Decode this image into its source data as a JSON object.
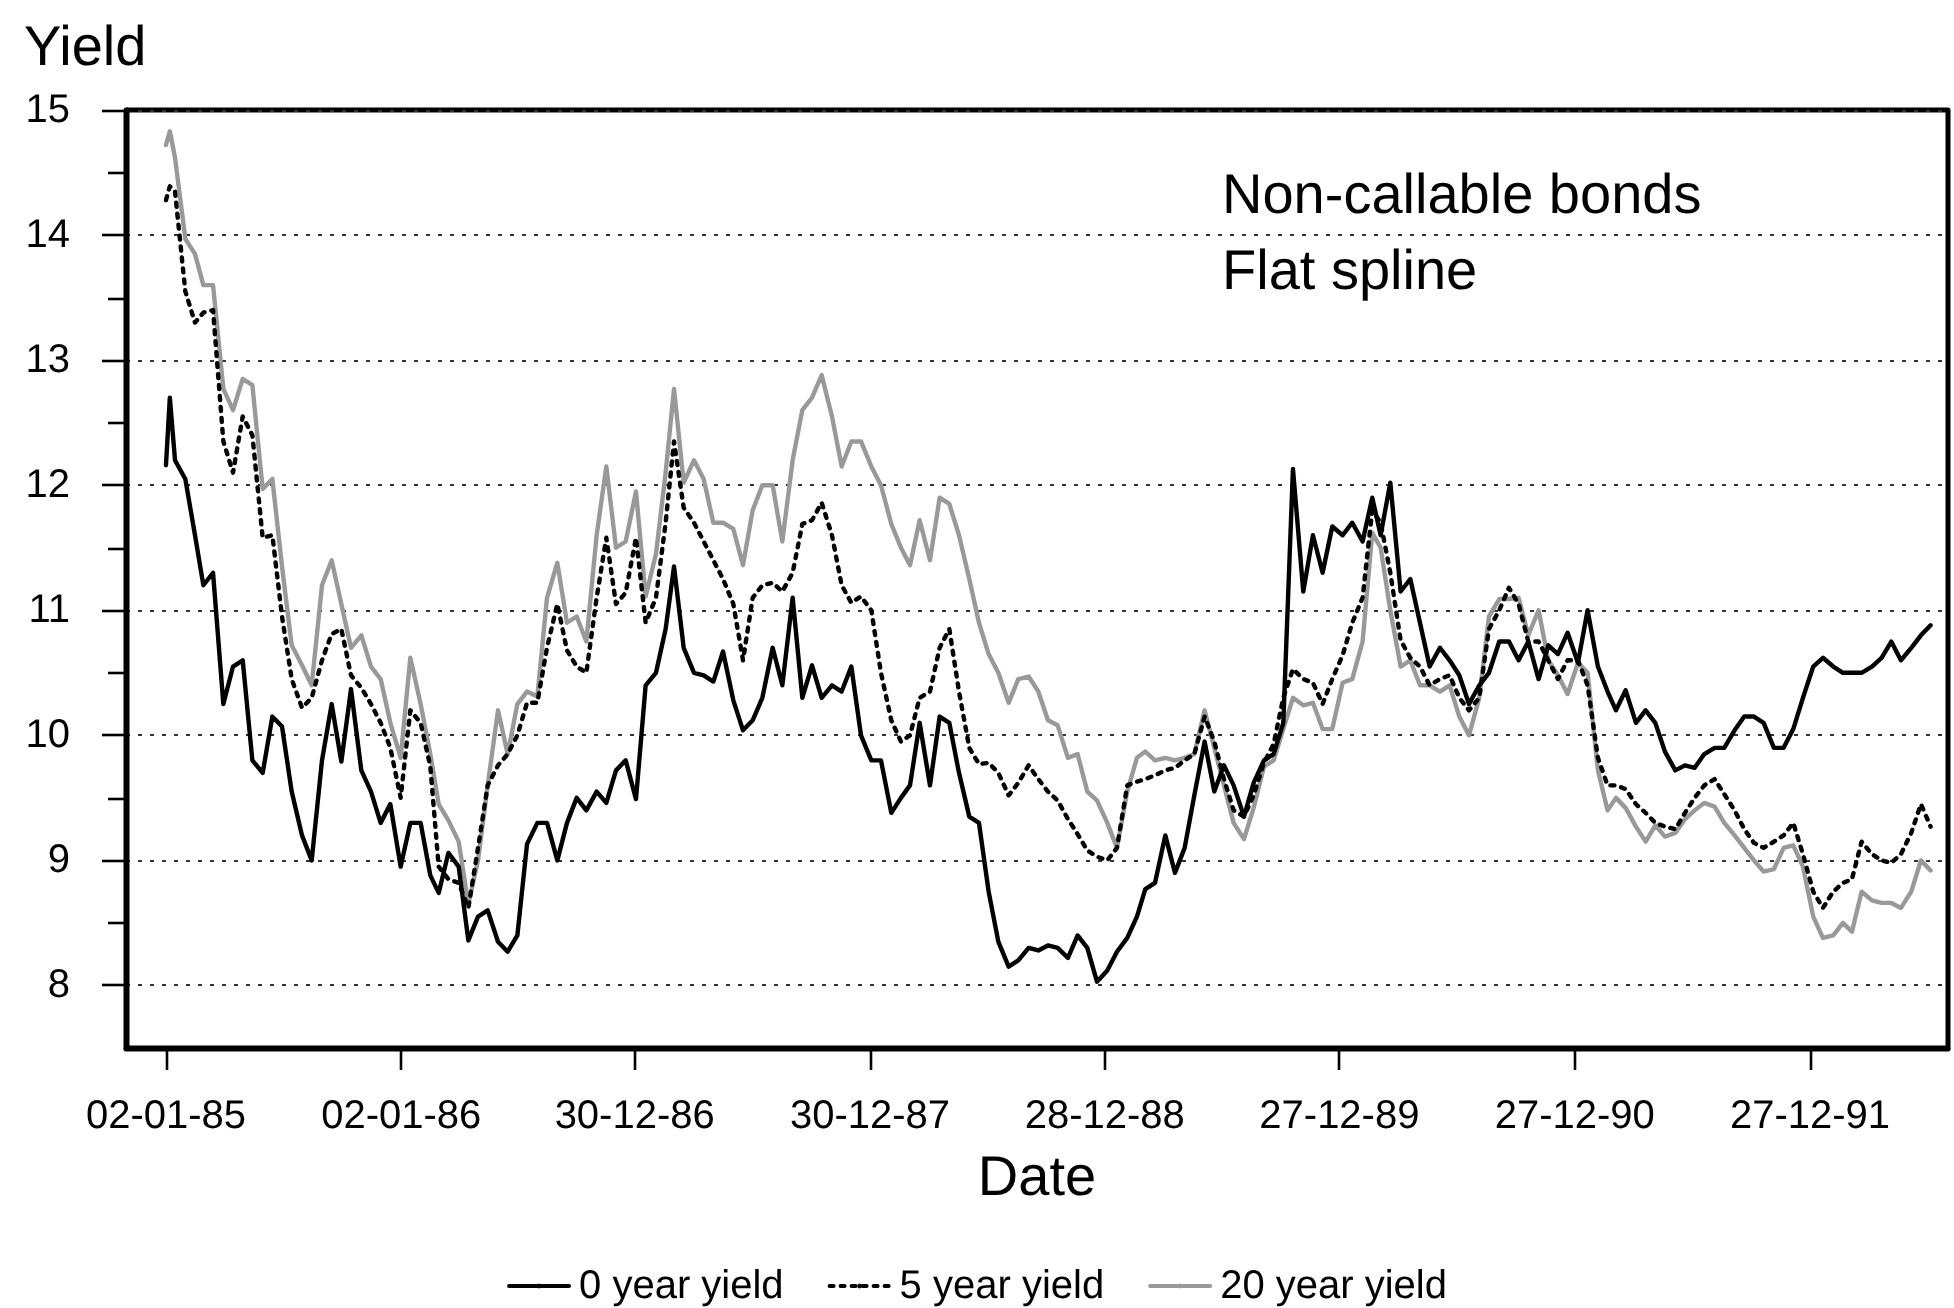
{
  "chart_data": {
    "type": "line",
    "xlabel": "Date",
    "ylabel": "Yield",
    "annotations": [
      "Non-callable bonds",
      "Flat spline"
    ],
    "x": [
      "1985-01-02",
      "1985-01-08",
      "1985-01-16",
      "1985-02-01",
      "1985-02-16",
      "1985-03-01",
      "1985-03-16",
      "1985-04-01",
      "1985-04-16",
      "1985-05-01",
      "1985-05-16",
      "1985-06-01",
      "1985-06-16",
      "1985-07-01",
      "1985-07-16",
      "1985-08-01",
      "1985-08-16",
      "1985-09-01",
      "1985-09-16",
      "1985-10-01",
      "1985-10-16",
      "1985-11-01",
      "1985-11-16",
      "1985-12-01",
      "1985-12-16",
      "1986-01-01",
      "1986-01-16",
      "1986-02-01",
      "1986-02-16",
      "1986-03-01",
      "1986-03-16",
      "1986-04-01",
      "1986-04-16",
      "1986-05-01",
      "1986-05-16",
      "1986-06-01",
      "1986-06-16",
      "1986-07-01",
      "1986-07-16",
      "1986-08-01",
      "1986-08-16",
      "1986-09-01",
      "1986-09-16",
      "1986-10-01",
      "1986-10-16",
      "1986-11-01",
      "1986-11-16",
      "1986-12-01",
      "1986-12-16",
      "1987-01-01",
      "1987-01-16",
      "1987-02-01",
      "1987-02-16",
      "1987-03-01",
      "1987-03-16",
      "1987-04-01",
      "1987-04-16",
      "1987-05-01",
      "1987-05-16",
      "1987-06-01",
      "1987-06-16",
      "1987-07-01",
      "1987-07-16",
      "1987-08-01",
      "1987-08-16",
      "1987-09-01",
      "1987-09-16",
      "1987-10-01",
      "1987-10-16",
      "1987-11-01",
      "1987-11-16",
      "1987-12-01",
      "1987-12-16",
      "1988-01-01",
      "1988-01-16",
      "1988-02-01",
      "1988-02-16",
      "1988-03-01",
      "1988-03-16",
      "1988-04-01",
      "1988-04-16",
      "1988-05-01",
      "1988-05-16",
      "1988-06-01",
      "1988-06-16",
      "1988-07-01",
      "1988-07-16",
      "1988-08-01",
      "1988-08-16",
      "1988-09-01",
      "1988-09-16",
      "1988-10-01",
      "1988-10-16",
      "1988-11-01",
      "1988-11-16",
      "1988-12-01",
      "1988-12-16",
      "1989-01-01",
      "1989-01-16",
      "1989-02-01",
      "1989-02-16",
      "1989-03-01",
      "1989-03-16",
      "1989-04-01",
      "1989-04-16",
      "1989-05-01",
      "1989-05-16",
      "1989-06-01",
      "1989-06-16",
      "1989-07-01",
      "1989-07-16",
      "1989-08-01",
      "1989-08-16",
      "1989-09-01",
      "1989-09-16",
      "1989-10-01",
      "1989-10-16",
      "1989-11-01",
      "1989-11-16",
      "1989-12-01",
      "1989-12-16",
      "1990-01-01",
      "1990-01-16",
      "1990-02-01",
      "1990-02-16",
      "1990-03-01",
      "1990-03-16",
      "1990-04-01",
      "1990-04-16",
      "1990-05-01",
      "1990-05-16",
      "1990-06-01",
      "1990-06-16",
      "1990-07-01",
      "1990-07-16",
      "1990-08-01",
      "1990-08-16",
      "1990-09-01",
      "1990-09-16",
      "1990-10-01",
      "1990-10-16",
      "1990-11-01",
      "1990-11-16",
      "1990-12-01",
      "1990-12-16",
      "1991-01-01",
      "1991-01-16",
      "1991-02-01",
      "1991-02-16",
      "1991-03-01",
      "1991-03-16",
      "1991-04-01",
      "1991-04-16",
      "1991-05-01",
      "1991-05-16",
      "1991-06-01",
      "1991-06-16",
      "1991-07-01",
      "1991-07-16",
      "1991-08-01",
      "1991-08-16",
      "1991-09-01",
      "1991-09-16",
      "1991-10-01",
      "1991-10-16",
      "1991-11-01",
      "1991-11-16",
      "1991-12-01",
      "1991-12-16",
      "1992-01-01",
      "1992-01-16",
      "1992-02-01",
      "1992-02-16",
      "1992-03-01",
      "1992-03-16",
      "1992-04-01",
      "1992-04-16",
      "1992-05-01",
      "1992-05-16",
      "1992-06-01",
      "1992-06-16",
      "1992-07-01"
    ],
    "series": [
      {
        "name": "0 year yield",
        "color": "#000000",
        "line_style": "solid",
        "values": [
          12.16,
          12.7,
          12.2,
          12.05,
          11.6,
          11.2,
          11.3,
          10.25,
          10.55,
          10.6,
          9.8,
          9.7,
          10.15,
          10.07,
          9.55,
          9.2,
          9.0,
          9.8,
          10.25,
          9.79,
          10.37,
          9.72,
          9.55,
          9.3,
          9.45,
          8.95,
          9.3,
          9.3,
          8.88,
          8.74,
          9.06,
          8.95,
          8.36,
          8.55,
          8.6,
          8.35,
          8.27,
          8.4,
          9.13,
          9.3,
          9.3,
          9.0,
          9.3,
          9.5,
          9.4,
          9.55,
          9.46,
          9.72,
          9.8,
          9.49,
          10.4,
          10.5,
          10.85,
          11.35,
          10.7,
          10.5,
          10.48,
          10.43,
          10.67,
          10.28,
          10.04,
          10.12,
          10.3,
          10.7,
          10.4,
          11.1,
          10.3,
          10.56,
          10.3,
          10.4,
          10.35,
          10.55,
          10.0,
          9.8,
          9.8,
          9.38,
          9.5,
          9.6,
          10.1,
          9.6,
          10.15,
          10.1,
          9.7,
          9.35,
          9.3,
          8.75,
          8.35,
          8.15,
          8.2,
          8.3,
          8.28,
          8.32,
          8.3,
          8.22,
          8.4,
          8.3,
          8.03,
          8.12,
          8.27,
          8.38,
          8.55,
          8.77,
          8.82,
          9.2,
          8.9,
          9.1,
          9.52,
          9.95,
          9.55,
          9.76,
          9.6,
          9.35,
          9.62,
          9.8,
          9.85,
          10.1,
          12.13,
          11.15,
          11.6,
          11.3,
          11.67,
          11.6,
          11.7,
          11.55,
          11.9,
          11.6,
          12.02,
          11.15,
          11.25,
          10.9,
          10.55,
          10.7,
          10.6,
          10.48,
          10.25,
          10.4,
          10.5,
          10.75,
          10.75,
          10.6,
          10.75,
          10.45,
          10.72,
          10.65,
          10.82,
          10.58,
          11.0,
          10.55,
          10.35,
          10.2,
          10.36,
          10.1,
          10.2,
          10.1,
          9.87,
          9.72,
          9.76,
          9.74,
          9.85,
          9.9,
          9.9,
          10.04,
          10.15,
          10.15,
          10.1,
          9.9,
          9.9,
          10.05,
          10.3,
          10.55,
          10.62,
          10.55,
          10.5,
          10.5,
          10.5,
          10.55,
          10.62,
          10.75,
          10.6,
          10.7,
          10.8,
          10.88
        ]
      },
      {
        "name": "5 year yield",
        "color": "#000000",
        "line_style": "dotted",
        "values": [
          14.28,
          14.39,
          14.35,
          13.55,
          13.3,
          13.38,
          13.4,
          12.35,
          12.1,
          12.55,
          12.4,
          11.58,
          11.6,
          10.95,
          10.45,
          10.22,
          10.3,
          10.6,
          10.81,
          10.85,
          10.48,
          10.38,
          10.25,
          10.1,
          9.9,
          9.5,
          10.2,
          10.1,
          9.75,
          8.95,
          8.85,
          8.82,
          8.62,
          9.1,
          9.6,
          9.76,
          9.85,
          10.0,
          10.26,
          10.26,
          10.7,
          11.05,
          10.68,
          10.55,
          10.5,
          11.1,
          11.58,
          11.05,
          11.14,
          11.58,
          10.9,
          11.1,
          11.7,
          12.35,
          11.82,
          11.7,
          11.55,
          11.4,
          11.25,
          11.05,
          10.6,
          11.1,
          11.2,
          11.22,
          11.15,
          11.3,
          11.69,
          11.72,
          11.86,
          11.6,
          11.2,
          11.06,
          11.11,
          11.0,
          10.5,
          10.12,
          9.95,
          10.0,
          10.3,
          10.35,
          10.7,
          10.85,
          10.35,
          9.9,
          9.77,
          9.78,
          9.7,
          9.52,
          9.62,
          9.76,
          9.65,
          9.55,
          9.48,
          9.33,
          9.21,
          9.08,
          9.03,
          9.0,
          9.1,
          9.6,
          9.63,
          9.65,
          9.68,
          9.72,
          9.74,
          9.8,
          9.85,
          10.15,
          9.95,
          9.65,
          9.4,
          9.35,
          9.52,
          9.78,
          9.93,
          10.3,
          10.53,
          10.45,
          10.42,
          10.25,
          10.45,
          10.64,
          10.9,
          11.1,
          11.8,
          11.7,
          11.3,
          10.76,
          10.62,
          10.55,
          10.4,
          10.45,
          10.48,
          10.3,
          10.2,
          10.3,
          10.85,
          11.0,
          11.18,
          11.05,
          10.75,
          10.75,
          10.6,
          10.45,
          10.6,
          10.6,
          10.4,
          9.82,
          9.6,
          9.6,
          9.57,
          9.45,
          9.38,
          9.3,
          9.27,
          9.25,
          9.38,
          9.5,
          9.6,
          9.65,
          9.53,
          9.4,
          9.25,
          9.14,
          9.1,
          9.15,
          9.2,
          9.3,
          9.05,
          8.75,
          8.62,
          8.75,
          8.82,
          8.85,
          9.15,
          9.05,
          9.0,
          8.98,
          9.05,
          9.22,
          9.45,
          9.27
        ]
      },
      {
        "name": "20 year yield",
        "color": "#999999",
        "line_style": "solid",
        "values": [
          14.72,
          14.83,
          14.62,
          13.97,
          13.85,
          13.6,
          13.6,
          12.77,
          12.6,
          12.85,
          12.8,
          11.97,
          12.05,
          11.35,
          10.72,
          10.56,
          10.4,
          11.2,
          11.4,
          11.05,
          10.7,
          10.8,
          10.55,
          10.45,
          10.1,
          9.82,
          10.62,
          10.25,
          9.85,
          9.45,
          9.32,
          9.15,
          8.65,
          9.0,
          9.6,
          10.2,
          9.85,
          10.25,
          10.35,
          10.31,
          11.1,
          11.38,
          10.9,
          10.95,
          10.75,
          11.6,
          12.15,
          11.5,
          11.55,
          11.95,
          11.11,
          11.45,
          12.1,
          12.77,
          12.02,
          12.2,
          12.05,
          11.7,
          11.7,
          11.65,
          11.36,
          11.8,
          12.0,
          12.0,
          11.55,
          12.2,
          12.6,
          12.7,
          12.88,
          12.55,
          12.15,
          12.35,
          12.35,
          12.15,
          12.0,
          11.69,
          11.5,
          11.36,
          11.72,
          11.4,
          11.9,
          11.85,
          11.6,
          11.25,
          10.9,
          10.65,
          10.5,
          10.26,
          10.45,
          10.47,
          10.35,
          10.12,
          10.08,
          9.82,
          9.85,
          9.55,
          9.48,
          9.3,
          9.1,
          9.55,
          9.82,
          9.87,
          9.8,
          9.82,
          9.8,
          9.82,
          9.85,
          10.2,
          9.9,
          9.6,
          9.3,
          9.17,
          9.42,
          9.75,
          9.8,
          10.05,
          10.3,
          10.24,
          10.26,
          10.05,
          10.05,
          10.42,
          10.45,
          10.75,
          11.62,
          11.5,
          11.0,
          10.55,
          10.6,
          10.4,
          10.4,
          10.35,
          10.4,
          10.15,
          10.0,
          10.3,
          10.95,
          11.09,
          11.09,
          11.1,
          10.8,
          11.0,
          10.6,
          10.48,
          10.33,
          10.58,
          10.5,
          9.72,
          9.4,
          9.5,
          9.42,
          9.27,
          9.15,
          9.28,
          9.19,
          9.22,
          9.33,
          9.4,
          9.46,
          9.43,
          9.3,
          9.2,
          9.1,
          9.0,
          8.91,
          8.93,
          9.1,
          9.12,
          8.95,
          8.55,
          8.38,
          8.4,
          8.5,
          8.43,
          8.75,
          8.68,
          8.66,
          8.66,
          8.62,
          8.75,
          9.0,
          8.92
        ]
      }
    ],
    "xlim": [
      "1984-11-01",
      "1992-07-28"
    ],
    "xticks": [
      {
        "value": "1985-01-02",
        "label": "02-01-85"
      },
      {
        "value": "1986-01-02",
        "label": "02-01-86"
      },
      {
        "value": "1986-12-30",
        "label": "30-12-86"
      },
      {
        "value": "1987-12-30",
        "label": "30-12-87"
      },
      {
        "value": "1988-12-28",
        "label": "28-12-88"
      },
      {
        "value": "1989-12-27",
        "label": "27-12-89"
      },
      {
        "value": "1990-12-27",
        "label": "27-12-90"
      },
      {
        "value": "1991-12-27",
        "label": "27-12-91"
      }
    ],
    "ylim": [
      7.5,
      15
    ],
    "yticks": [
      8,
      {
        "value": 8.5,
        "label": null
      },
      9,
      {
        "value": 9.5,
        "label": null
      },
      10,
      {
        "value": 10.5,
        "label": null
      },
      11,
      {
        "value": 11.5,
        "label": null
      },
      12,
      {
        "value": 12.5,
        "label": null
      },
      13,
      {
        "value": 13.5,
        "label": null
      },
      14,
      {
        "value": 14.5,
        "label": null
      },
      15
    ],
    "grid": "y",
    "legend": "bottom",
    "marker": "none"
  }
}
